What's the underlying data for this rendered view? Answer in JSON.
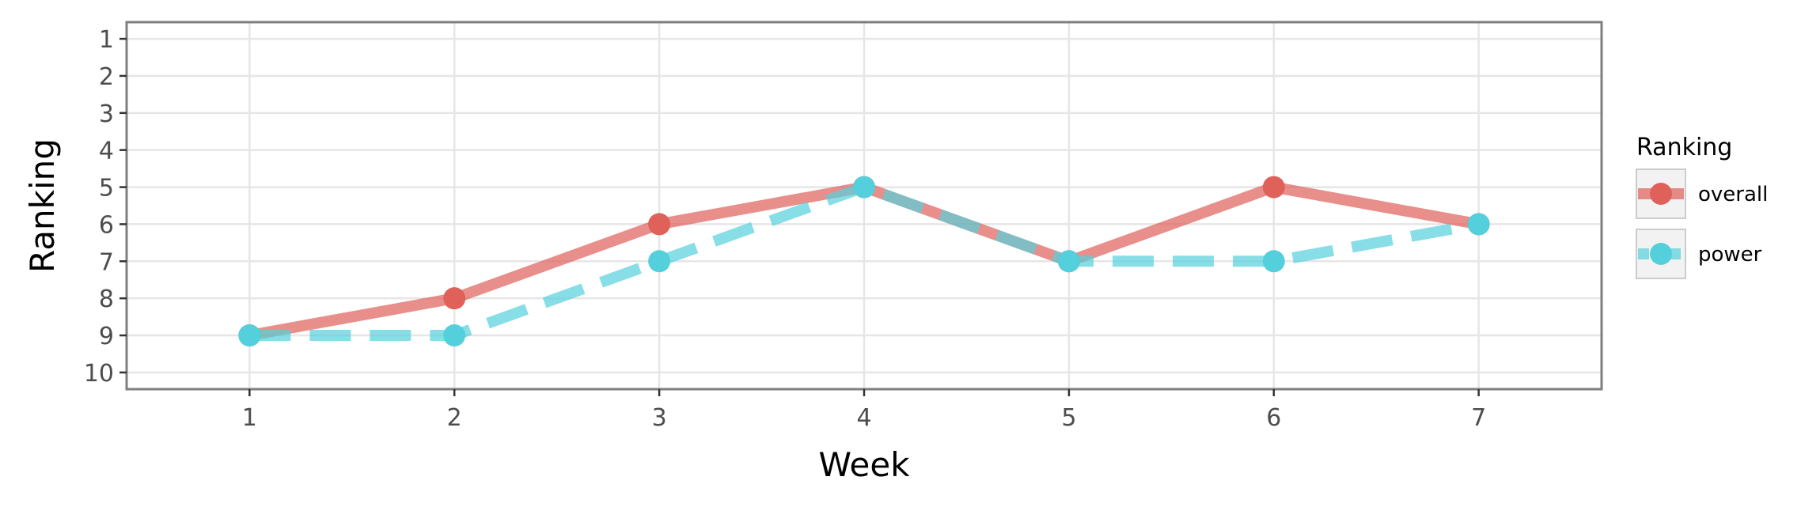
{
  "chart_data": {
    "type": "line",
    "xlabel": "Week",
    "ylabel": "Ranking",
    "x": [
      1,
      2,
      3,
      4,
      5,
      6,
      7
    ],
    "xlim": [
      0.4,
      7.6
    ],
    "ylim": [
      10.45,
      0.55
    ],
    "y_inverted": true,
    "y_ticks": [
      1,
      2,
      3,
      4,
      5,
      6,
      7,
      8,
      9,
      10
    ],
    "x_ticks": [
      1,
      2,
      3,
      4,
      5,
      6,
      7
    ],
    "grid": true,
    "legend": {
      "title": "Ranking",
      "position": "right"
    },
    "series": [
      {
        "name": "overall",
        "values": [
          9,
          8,
          6,
          5,
          7,
          5,
          6
        ],
        "color": "#e0605a",
        "line_style": "solid"
      },
      {
        "name": "power",
        "values": [
          9,
          9,
          7,
          5,
          7,
          7,
          6
        ],
        "color": "#54d0dc",
        "line_style": "dashed"
      }
    ]
  }
}
